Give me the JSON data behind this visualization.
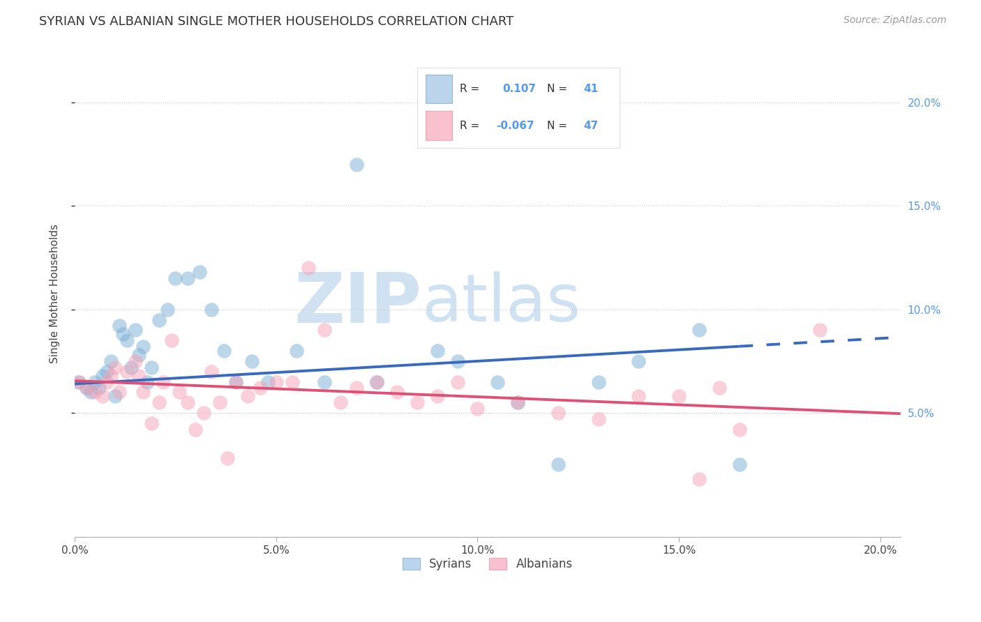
{
  "title": "SYRIAN VS ALBANIAN SINGLE MOTHER HOUSEHOLDS CORRELATION CHART",
  "source": "Source: ZipAtlas.com",
  "ylabel": "Single Mother Households",
  "watermark_zip": "ZIP",
  "watermark_atlas": "atlas",
  "xlim": [
    0.0,
    0.205
  ],
  "ylim": [
    -0.01,
    0.225
  ],
  "yticks": [
    0.05,
    0.1,
    0.15,
    0.2
  ],
  "xticks": [
    0.0,
    0.05,
    0.1,
    0.15,
    0.2
  ],
  "xtick_labels": [
    "0.0%",
    "5.0%",
    "10.0%",
    "15.0%",
    "20.0%"
  ],
  "ytick_labels": [
    "5.0%",
    "10.0%",
    "15.0%",
    "20.0%"
  ],
  "syrian_color": "#7aafd4",
  "albanian_color": "#f4a0b5",
  "legend_blue_fill": "#bad4eb",
  "legend_pink_fill": "#f9c0ce",
  "R_syrian_str": "0.107",
  "N_syrian_str": "41",
  "R_albanian_str": "-0.067",
  "N_albanian_str": "47",
  "syrian_x": [
    0.001,
    0.003,
    0.004,
    0.005,
    0.006,
    0.007,
    0.008,
    0.009,
    0.01,
    0.011,
    0.012,
    0.013,
    0.014,
    0.015,
    0.016,
    0.017,
    0.018,
    0.019,
    0.021,
    0.023,
    0.025,
    0.028,
    0.031,
    0.034,
    0.037,
    0.04,
    0.044,
    0.048,
    0.055,
    0.062,
    0.07,
    0.075,
    0.09,
    0.095,
    0.105,
    0.11,
    0.12,
    0.13,
    0.14,
    0.155,
    0.165
  ],
  "syrian_y": [
    0.065,
    0.062,
    0.06,
    0.065,
    0.062,
    0.068,
    0.07,
    0.075,
    0.058,
    0.092,
    0.088,
    0.085,
    0.072,
    0.09,
    0.078,
    0.082,
    0.065,
    0.072,
    0.095,
    0.1,
    0.115,
    0.115,
    0.118,
    0.1,
    0.08,
    0.065,
    0.075,
    0.065,
    0.08,
    0.065,
    0.17,
    0.065,
    0.08,
    0.075,
    0.065,
    0.055,
    0.025,
    0.065,
    0.075,
    0.09,
    0.025
  ],
  "albanian_x": [
    0.001,
    0.003,
    0.005,
    0.007,
    0.008,
    0.009,
    0.01,
    0.011,
    0.013,
    0.015,
    0.016,
    0.017,
    0.019,
    0.021,
    0.022,
    0.024,
    0.026,
    0.028,
    0.03,
    0.032,
    0.034,
    0.036,
    0.038,
    0.04,
    0.043,
    0.046,
    0.05,
    0.054,
    0.058,
    0.062,
    0.066,
    0.07,
    0.075,
    0.08,
    0.085,
    0.09,
    0.095,
    0.1,
    0.11,
    0.12,
    0.13,
    0.14,
    0.15,
    0.155,
    0.16,
    0.165,
    0.185
  ],
  "albanian_y": [
    0.065,
    0.062,
    0.06,
    0.058,
    0.065,
    0.068,
    0.072,
    0.06,
    0.07,
    0.075,
    0.068,
    0.06,
    0.045,
    0.055,
    0.065,
    0.085,
    0.06,
    0.055,
    0.042,
    0.05,
    0.07,
    0.055,
    0.028,
    0.065,
    0.058,
    0.062,
    0.065,
    0.065,
    0.12,
    0.09,
    0.055,
    0.062,
    0.065,
    0.06,
    0.055,
    0.058,
    0.065,
    0.052,
    0.055,
    0.05,
    0.047,
    0.058,
    0.058,
    0.018,
    0.062,
    0.042,
    0.09
  ],
  "scatter_size": 220,
  "scatter_alpha": 0.5,
  "blue_line_color": "#3a6abf",
  "pink_line_color": "#e05075",
  "line_width": 2.8,
  "background_color": "#ffffff",
  "grid_color": "#cccccc",
  "right_tick_color": "#5599ee",
  "watermark_color_zip": "#c8ddf0",
  "watermark_color_atlas": "#c8ddf0",
  "title_fontsize": 13,
  "axis_label_fontsize": 11,
  "tick_fontsize": 11,
  "legend_fontsize": 12,
  "source_fontsize": 10
}
